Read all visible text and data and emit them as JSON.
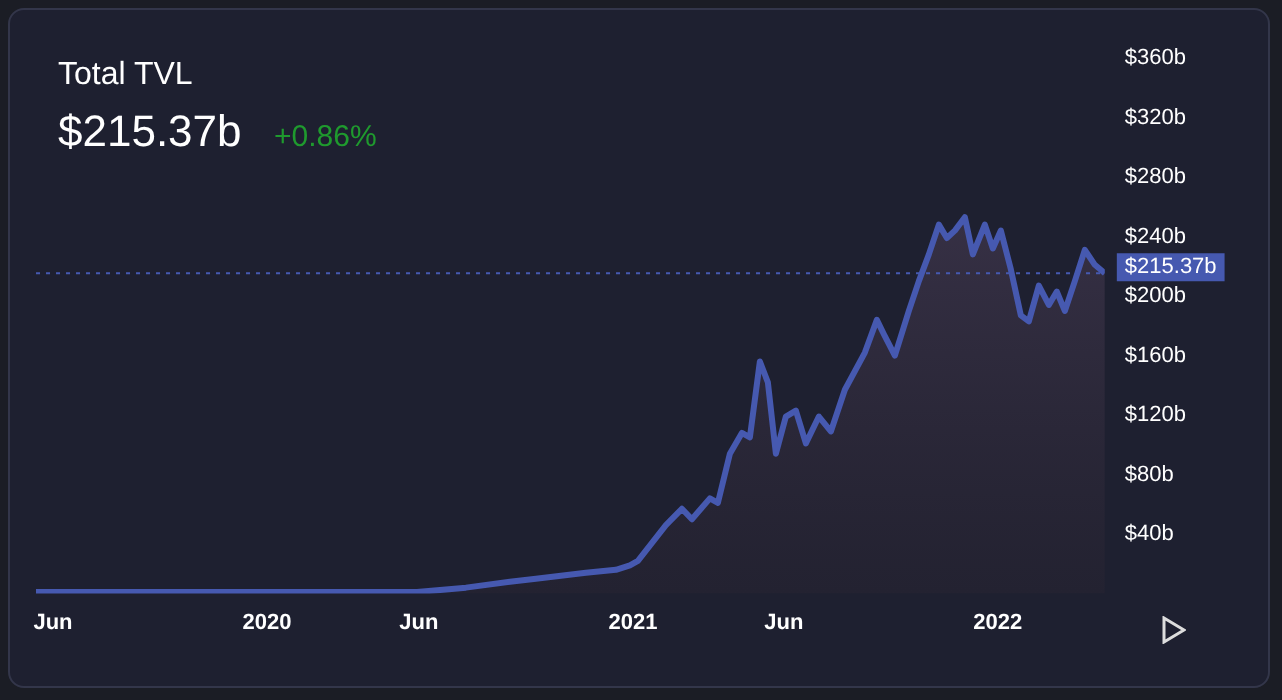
{
  "chart_data": {
    "type": "area",
    "title": "Total TVL",
    "subtitle": "$215.37b",
    "annotations": [
      "+0.86%"
    ],
    "x": [
      "2019-05-15",
      "2019-07-05",
      "2019-10-13",
      "2020-01-01",
      "2020-03-21",
      "2020-05-30",
      "2020-07-18",
      "2020-08-31",
      "2020-09-26",
      "2020-11-15",
      "2020-12-15",
      "2020-12-29",
      "2021-01-06",
      "2021-02-03",
      "2021-02-19",
      "2021-03-01",
      "2021-03-19",
      "2021-03-27",
      "2021-04-08",
      "2021-04-20",
      "2021-04-28",
      "2021-05-08",
      "2021-05-16",
      "2021-05-24",
      "2021-06-03",
      "2021-06-13",
      "2021-06-23",
      "2021-07-06",
      "2021-07-18",
      "2021-08-01",
      "2021-08-21",
      "2021-09-02",
      "2021-09-10",
      "2021-09-20",
      "2021-10-04",
      "2021-10-14",
      "2021-10-24",
      "2021-11-03",
      "2021-11-11",
      "2021-11-19",
      "2021-11-29",
      "2021-12-07",
      "2021-12-19",
      "2021-12-27",
      "2022-01-04",
      "2022-01-14",
      "2022-01-24",
      "2022-02-01",
      "2022-02-11",
      "2022-02-21",
      "2022-03-01",
      "2022-03-09",
      "2022-03-19",
      "2022-03-29",
      "2022-04-08",
      "2022-04-18"
    ],
    "series": [
      {
        "color": "#4659b0",
        "values": [
          1,
          1,
          1,
          1,
          1,
          1,
          4,
          8,
          10,
          14,
          16,
          19,
          22,
          46,
          57,
          50,
          64,
          61,
          94,
          108,
          105,
          156,
          142,
          94,
          119,
          123,
          101,
          119,
          109,
          137,
          162,
          184,
          173,
          160,
          190,
          210,
          228,
          248,
          239,
          244,
          253,
          228,
          248,
          232,
          244,
          218,
          187,
          183,
          207,
          194,
          203,
          190,
          210,
          231,
          221,
          215.37
        ]
      }
    ],
    "xlim": [
      "2019-05-15",
      "2022-04-18"
    ],
    "xticks": [
      {
        "value": "2019-06-01",
        "label": "Jun"
      },
      {
        "value": "2020-01-01",
        "label": "2020"
      },
      {
        "value": "2020-06-01",
        "label": "Jun"
      },
      {
        "value": "2021-01-01",
        "label": "2021"
      },
      {
        "value": "2021-06-01",
        "label": "Jun"
      },
      {
        "value": "2022-01-01",
        "label": "2022"
      }
    ],
    "ylim": [
      0,
      360
    ],
    "yticks": [
      {
        "value": 40,
        "label": "$40b"
      },
      {
        "value": 80,
        "label": "$80b"
      },
      {
        "value": 120,
        "label": "$120b"
      },
      {
        "value": 160,
        "label": "$160b"
      },
      {
        "value": 200,
        "label": "$200b"
      },
      {
        "value": 240,
        "label": "$240b"
      },
      {
        "value": 280,
        "label": "$280b"
      },
      {
        "value": 320,
        "label": "$320b"
      },
      {
        "value": 360,
        "label": "$360b"
      }
    ],
    "ref_lines": [
      {
        "axis": "y",
        "value": 215.37,
        "label": "$215.37b",
        "color": "#4659b0",
        "line_style": "dotted"
      }
    ],
    "grid": false,
    "legend": false
  }
}
